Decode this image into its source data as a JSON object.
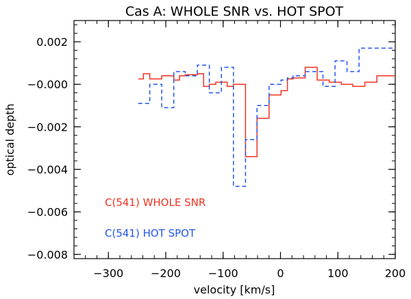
{
  "chart_data": {
    "type": "line",
    "title": "Cas A: WHOLE SNR vs. HOT SPOT",
    "xlabel": "velocity [km/s]",
    "ylabel": "optical depth",
    "xlim": [
      -360,
      200
    ],
    "ylim": [
      -0.0082,
      0.003
    ],
    "xticks": [
      {
        "value": -300,
        "label": "−300"
      },
      {
        "value": -200,
        "label": "−200"
      },
      {
        "value": -100,
        "label": "−100"
      },
      {
        "value": 0,
        "label": "0"
      },
      {
        "value": 100,
        "label": "100"
      },
      {
        "value": 200,
        "label": "200"
      }
    ],
    "yticks": [
      {
        "value": 0.002,
        "label": "0.002"
      },
      {
        "value": 0.0,
        "label": "−0.000"
      },
      {
        "value": -0.002,
        "label": "−0.002"
      },
      {
        "value": -0.004,
        "label": "−0.004"
      },
      {
        "value": -0.006,
        "label": "−0.006"
      },
      {
        "value": -0.008,
        "label": "−0.008"
      }
    ],
    "x_minor_step": 20,
    "y_minor_step": 0.0004,
    "series": [
      {
        "name": "C(541) WHOLE SNR",
        "color": "#ee3322",
        "style": "solid",
        "x": [
          -248,
          -239,
          -228,
          -218,
          -207,
          -197,
          -186,
          -176,
          -166,
          -155,
          -145,
          -134,
          -124,
          -113,
          -103,
          -93,
          -82,
          -72,
          -61,
          -51,
          -41,
          -30,
          -20,
          -9,
          1,
          12,
          22,
          32,
          43,
          53,
          64,
          74,
          85,
          95,
          106,
          116,
          126,
          137,
          147,
          158,
          168,
          179,
          189,
          200
        ],
        "y": [
          0.00025,
          0.0005,
          0.00025,
          0.00025,
          0.0004,
          0.0004,
          0.0002,
          0.0004,
          0.00045,
          0.00045,
          0.0005,
          -0.0001,
          0.0,
          0.0001,
          0.0001,
          -0.0001,
          0.0,
          0.0,
          -0.0034,
          -0.0034,
          -0.0016,
          -0.0016,
          -0.0005,
          -0.0005,
          -0.0003,
          0.00025,
          0.0003,
          0.0003,
          0.0008,
          0.0008,
          0.0002,
          0.0002,
          0.0001,
          0.0001,
          0.0,
          0.0,
          -0.0001,
          -0.0001,
          0.0001,
          0.0001,
          0.0004,
          0.0004,
          0.0004,
          0.0004
        ]
      },
      {
        "name": "C(541) HOT SPOT",
        "color": "#2255ee",
        "style": "dashed",
        "x": [
          -248,
          -239,
          -228,
          -218,
          -207,
          -197,
          -186,
          -176,
          -166,
          -155,
          -145,
          -134,
          -124,
          -113,
          -103,
          -93,
          -82,
          -72,
          -61,
          -51,
          -41,
          -30,
          -20,
          -9,
          1,
          12,
          22,
          32,
          43,
          53,
          64,
          74,
          85,
          95,
          106,
          116,
          126,
          137,
          147,
          158,
          168,
          179,
          189,
          200
        ],
        "y": [
          -0.0009,
          -0.0009,
          0.0,
          0.0,
          -0.0011,
          -0.0011,
          0.0006,
          0.0006,
          0.0004,
          0.0004,
          0.0009,
          0.0009,
          -0.0004,
          -0.0004,
          0.0008,
          0.0008,
          -0.0048,
          -0.0048,
          -0.0026,
          -0.0026,
          -0.001,
          -0.001,
          0.0,
          0.0,
          0.0002,
          0.0003,
          0.0004,
          0.0004,
          0.0006,
          0.0006,
          0.0006,
          -0.0001,
          -0.0001,
          0.0011,
          0.0011,
          0.0006,
          0.0006,
          0.0017,
          0.0017,
          0.0017,
          0.0017,
          0.0017,
          0.0017,
          0.0017
        ]
      }
    ],
    "legend": [
      {
        "label": "C(541) WHOLE SNR",
        "color": "#ee3322"
      },
      {
        "label": "C(541) HOT SPOT",
        "color": "#2255ee"
      }
    ],
    "legend_position": "bottom-left"
  }
}
